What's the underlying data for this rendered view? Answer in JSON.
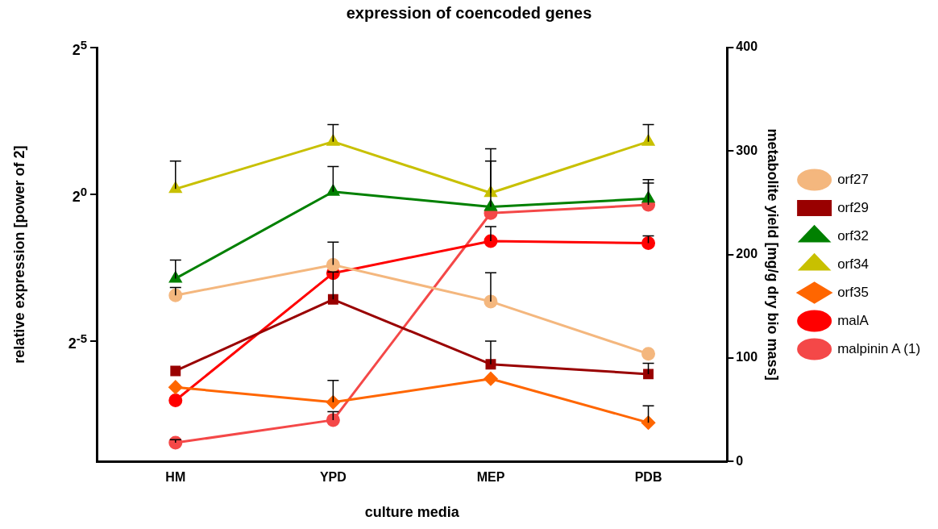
{
  "chart_data": {
    "type": "line",
    "title": "expression of coencoded genes",
    "xlabel": "culture media",
    "ylabel": "relative expression [power of 2]",
    "y2label": "metabolite yield [mg/g dry bio mass]",
    "categories": [
      "HM",
      "YPD",
      "MEP",
      "PDB"
    ],
    "log": "y",
    "ylim": [
      0.0018,
      32
    ],
    "yticks": [
      {
        "value": 0.03125,
        "label": "2$^{-5}$"
      },
      {
        "value": 1,
        "label": "2$^{0}$"
      },
      {
        "value": 32,
        "label": "2$^{5}$"
      }
    ],
    "y2lim": [
      0,
      400
    ],
    "y2ticks": [
      0,
      100,
      200,
      300,
      400
    ],
    "grid": false,
    "legend": "right",
    "line_style": "solid",
    "series": [
      {
        "name": "orf27",
        "color": "#f4b77e",
        "marker": "circle",
        "values": [
          0.0915,
          0.188,
          0.079,
          0.0229
        ],
        "errors": [
          [
            0.0915,
            0.11
          ],
          [
            0.188,
            0.321
          ],
          [
            0.079,
            0.156
          ],
          null
        ]
      },
      {
        "name": "orf29",
        "color": "#990000",
        "marker": "square",
        "values": [
          0.0153,
          0.083,
          0.0179,
          0.0142
        ],
        "errors": [
          null,
          [
            0.083,
            0.159
          ],
          [
            0.0179,
            0.031
          ],
          [
            0.0142,
            0.0183
          ]
        ]
      },
      {
        "name": "orf32",
        "color": "#008000",
        "marker": "triangle",
        "values": [
          0.136,
          1.06,
          0.74,
          0.9
        ],
        "errors": [
          [
            0.136,
            0.21
          ],
          [
            1.06,
            1.92
          ],
          [
            0.74,
            2.19
          ],
          [
            0.9,
            1.41
          ]
        ]
      },
      {
        "name": "orf34",
        "color": "#c8c000",
        "marker": "triangle",
        "values": [
          1.13,
          3.46,
          1.03,
          3.46
        ],
        "errors": [
          [
            1.13,
            2.19
          ],
          [
            3.46,
            5.17
          ],
          [
            1.03,
            2.93
          ],
          [
            3.46,
            5.17
          ]
        ]
      },
      {
        "name": "orf35",
        "color": "#ff6600",
        "marker": "diamond",
        "values": [
          0.0104,
          0.0073,
          0.0127,
          0.0045
        ],
        "errors": [
          null,
          [
            0.0073,
            0.0122
          ],
          null,
          [
            0.0045,
            0.0067
          ]
        ]
      },
      {
        "name": "malA",
        "color": "#ff0000",
        "marker": "circle",
        "axis": "y2",
        "values": [
          59,
          182,
          213,
          211
        ],
        "errors": [
          null,
          null,
          [
            213,
            227
          ],
          [
            211,
            218
          ]
        ]
      },
      {
        "name": "malpinin A (1)",
        "color": "#f44848",
        "marker": "circle",
        "axis": "y2",
        "values": [
          18,
          40,
          240,
          248
        ],
        "errors": [
          [
            18,
            21
          ],
          [
            40,
            48
          ],
          null,
          [
            248,
            269
          ]
        ]
      }
    ]
  }
}
